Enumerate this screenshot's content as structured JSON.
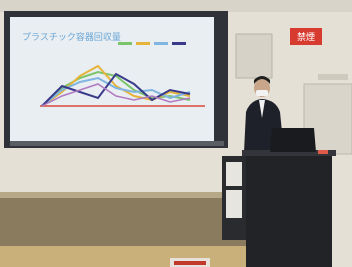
{
  "slide": {
    "title": "プラスチック容器回収量"
  },
  "sign": {
    "text": "禁煙"
  }
}
